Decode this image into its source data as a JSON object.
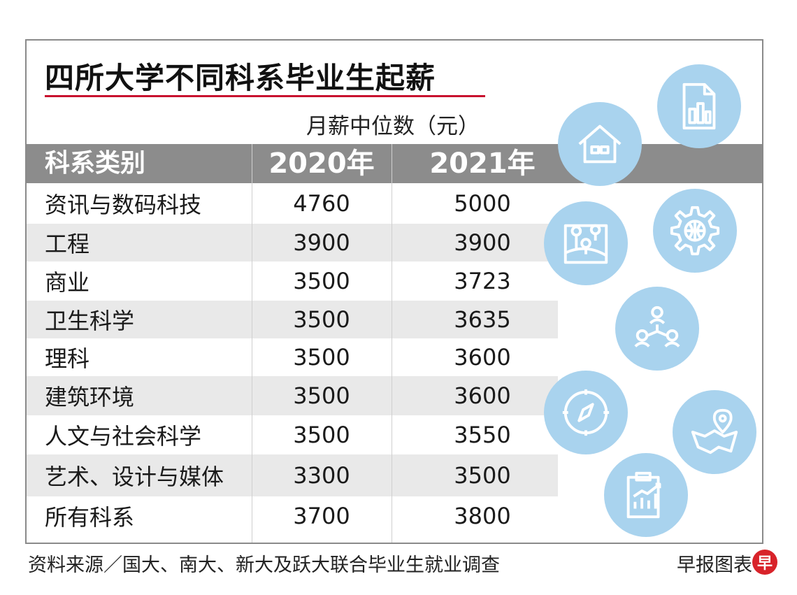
{
  "chart_data": {
    "type": "table",
    "title": "四所大学不同科系毕业生起薪",
    "unit_label": "月薪中位数（元）",
    "columns": [
      "科系类别",
      "2020年",
      "2021年"
    ],
    "rows": [
      {
        "category": "资讯与数码科技",
        "y2020": "4760",
        "y2021": "5000"
      },
      {
        "category": "工程",
        "y2020": "3900",
        "y2021": "3900"
      },
      {
        "category": "商业",
        "y2020": "3500",
        "y2021": "3723"
      },
      {
        "category": "卫生科学",
        "y2020": "3500",
        "y2021": "3635"
      },
      {
        "category": "理科",
        "y2020": "3500",
        "y2021": "3600"
      },
      {
        "category": "建筑环境",
        "y2020": "3500",
        "y2021": "3600"
      },
      {
        "category": "人文与社会科学",
        "y2020": "3500",
        "y2021": "3550"
      },
      {
        "category": "艺术、设计与媒体",
        "y2020": "3300",
        "y2021": "3500"
      },
      {
        "category": "所有科系",
        "y2020": "3700",
        "y2021": "3800"
      }
    ]
  },
  "footer": {
    "source": "资料来源／国大、南大、新大及跃大联合毕业生就业调查",
    "credit": "早报图表",
    "logo_char": "早"
  },
  "icons": [
    "house-icon",
    "document-chart-icon",
    "map-pins-icon",
    "gear-globe-icon",
    "network-people-icon",
    "compass-icon",
    "map-location-icon",
    "clipboard-chart-icon"
  ],
  "colors": {
    "header_bg": "#8c8c8c",
    "row_shade": "#e9e9e9",
    "icon_circle": "#a9d3ee",
    "title_rule": "#c8102e",
    "logo": "#d8232a"
  }
}
